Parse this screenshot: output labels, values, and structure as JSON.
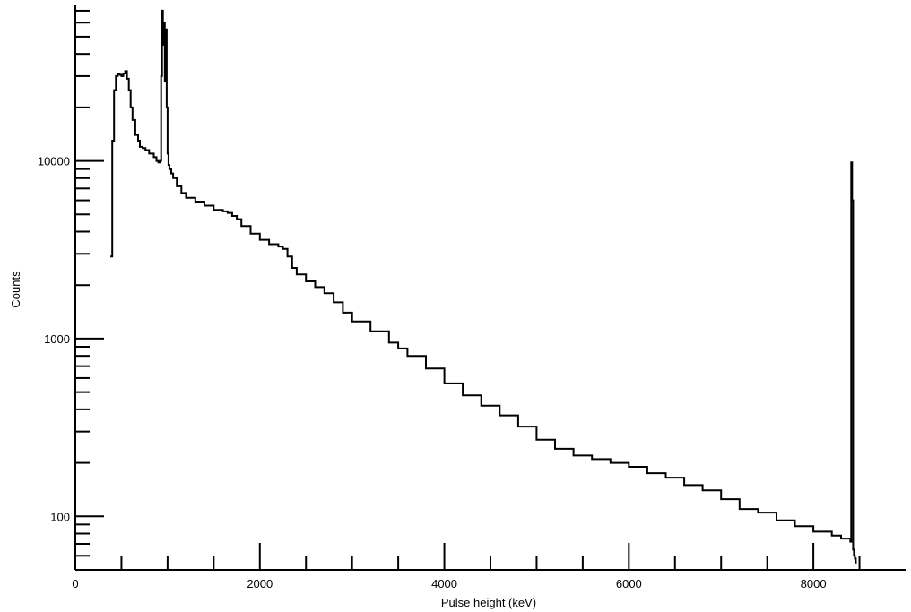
{
  "chart_data": {
    "type": "line",
    "title": "",
    "xlabel": "Pulse height (keV)",
    "ylabel": "Counts",
    "xlim": [
      0,
      9000
    ],
    "ylim": [
      50,
      75000
    ],
    "yscale": "log",
    "grid": false,
    "x_ticks": [
      0,
      2000,
      4000,
      6000,
      8000
    ],
    "x_minor_ticks": [
      500,
      1000,
      1500,
      2500,
      3000,
      3500,
      4500,
      5000,
      5500,
      6500,
      7000,
      7500,
      8500
    ],
    "y_ticks": [
      100,
      1000,
      10000
    ],
    "color": "#000000",
    "series": [
      {
        "x": [
          380,
          400,
          420,
          440,
          460,
          480,
          500,
          520,
          540,
          560,
          580,
          600,
          620,
          650,
          680,
          700,
          730,
          760,
          800,
          850,
          880,
          900,
          920,
          930,
          940,
          950,
          960,
          970,
          980,
          990,
          1000,
          1010,
          1020,
          1040,
          1060,
          1100,
          1150,
          1200,
          1300,
          1400,
          1500,
          1600,
          1650,
          1700,
          1750,
          1800,
          1900,
          2000,
          2100,
          2200,
          2250,
          2300,
          2350,
          2400,
          2500,
          2600,
          2700,
          2800,
          2900,
          3000,
          3200,
          3400,
          3500,
          3600,
          3800,
          4000,
          4200,
          4400,
          4600,
          4800,
          5000,
          5200,
          5400,
          5600,
          5800,
          6000,
          6200,
          6400,
          6600,
          6800,
          7000,
          7200,
          7400,
          7600,
          7800,
          8000,
          8200,
          8300,
          8400,
          8410,
          8420,
          8430,
          8440,
          8450,
          8460,
          8470
        ],
        "y": [
          2900,
          13000,
          25000,
          30000,
          31000,
          30500,
          30000,
          31000,
          32000,
          29000,
          25000,
          20000,
          17000,
          14000,
          13000,
          12000,
          11800,
          11500,
          11000,
          10500,
          10000,
          9800,
          10000,
          30000,
          70000,
          45000,
          60000,
          28000,
          55000,
          20000,
          11000,
          9500,
          9000,
          8500,
          8000,
          7200,
          6600,
          6200,
          5900,
          5600,
          5300,
          5200,
          5100,
          4900,
          4700,
          4300,
          3900,
          3600,
          3400,
          3300,
          3200,
          2900,
          2500,
          2300,
          2100,
          1950,
          1800,
          1600,
          1400,
          1250,
          1100,
          950,
          880,
          800,
          680,
          560,
          480,
          420,
          370,
          320,
          270,
          240,
          220,
          210,
          200,
          190,
          175,
          165,
          150,
          140,
          125,
          110,
          105,
          95,
          88,
          82,
          78,
          75,
          72,
          9800,
          6000,
          65,
          60,
          58,
          55,
          55
        ]
      }
    ]
  }
}
